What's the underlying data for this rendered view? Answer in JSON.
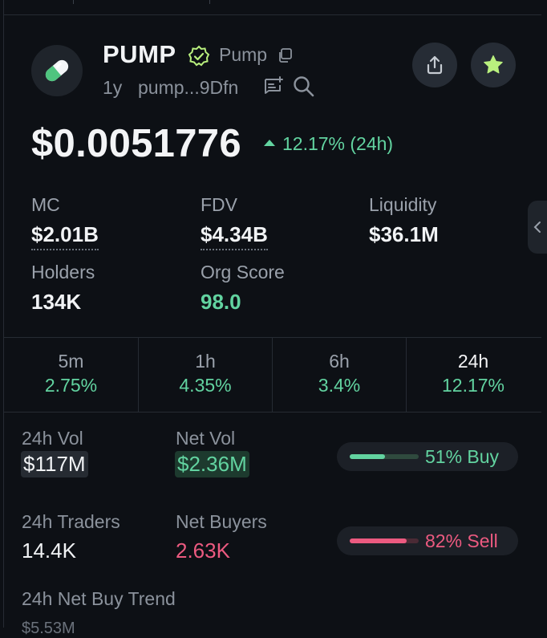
{
  "token": {
    "symbol": "PUMP",
    "name": "Pump",
    "age": "1y",
    "address": "pump...9Dfn"
  },
  "price": {
    "value": "$0.0051776",
    "change": "12.17% (24h)"
  },
  "stats": {
    "mc_label": "MC",
    "mc_value": "$2.01B",
    "fdv_label": "FDV",
    "fdv_value": "$4.34B",
    "liq_label": "Liquidity",
    "liq_value": "$36.1M",
    "holders_label": "Holders",
    "holders_value": "134K",
    "org_label": "Org Score",
    "org_value": "98.0"
  },
  "timeframes": [
    {
      "label": "5m",
      "value": "2.75%"
    },
    {
      "label": "1h",
      "value": "4.35%"
    },
    {
      "label": "6h",
      "value": "3.4%"
    },
    {
      "label": "24h",
      "value": "12.17%"
    }
  ],
  "volume": {
    "vol_label": "24h Vol",
    "vol_value": "$117M",
    "netvol_label": "Net Vol",
    "netvol_value": "$2.36M",
    "buy_text": "51% Buy",
    "buy_fraction": 0.51,
    "traders_label": "24h Traders",
    "traders_value": "14.4K",
    "netbuyers_label": "Net Buyers",
    "netbuyers_value": "2.63K",
    "sell_text": "82% Sell",
    "sell_fraction": 0.82,
    "trend_label": "24h Net Buy Trend",
    "trend_value": "$5.53M"
  },
  "colors": {
    "accent_green": "#62d3a0",
    "accent_pink": "#ec5a80",
    "star": "#b9f07e"
  },
  "icons": [
    "pill-logo-icon",
    "verified-badge-icon",
    "copy-icon",
    "notes-icon",
    "search-icon",
    "share-icon",
    "star-icon",
    "chevron-left-icon"
  ]
}
